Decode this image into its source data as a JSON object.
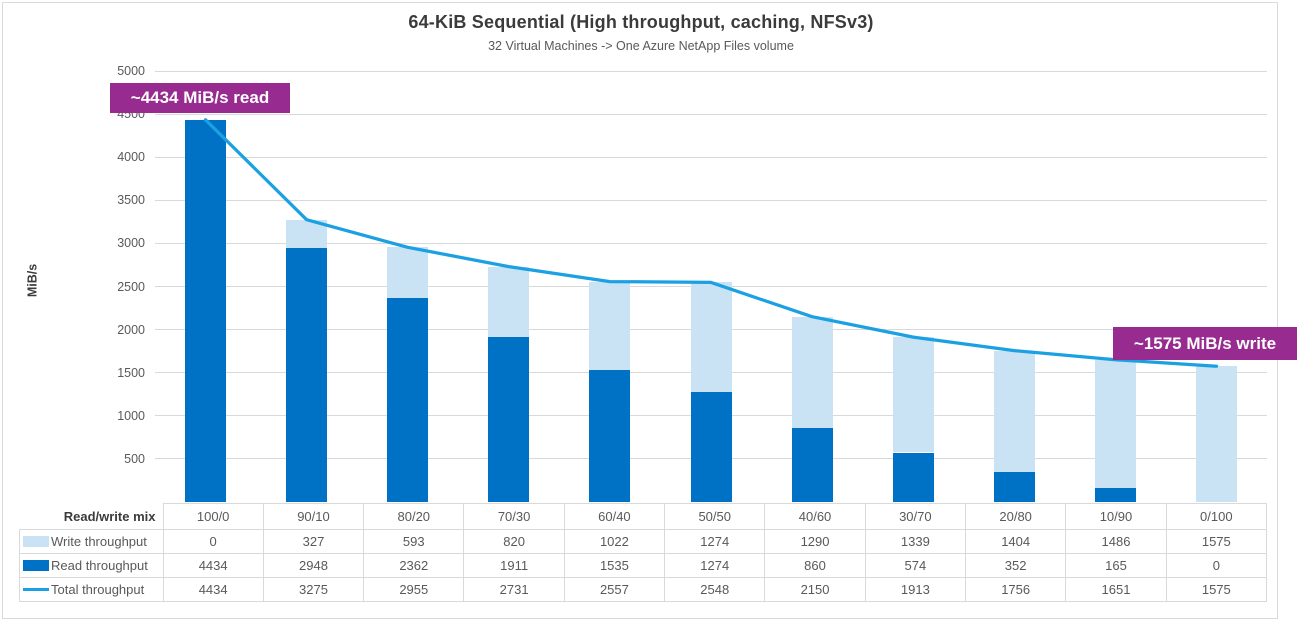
{
  "header": {
    "title": "64-KiB Sequential (High throughput, caching, NFSv3)",
    "subtitle": "32 Virtual Machines -> One Azure NetApp Files volume"
  },
  "annotations": [
    {
      "text": "~4434 MiB/s read",
      "color": "#982B90"
    },
    {
      "text": "~1575 MiB/s write",
      "color": "#982B90"
    }
  ],
  "chart_data": {
    "type": "combo-stacked-bar-line",
    "title": "64-KiB Sequential (High throughput, caching, NFSv3)",
    "subtitle": "32 Virtual Machines -> One Azure NetApp Files volume",
    "xlabel": "",
    "ylabel": "MiB/s",
    "x_header": "Read/write mix",
    "categories": [
      "100/0",
      "90/10",
      "80/20",
      "70/30",
      "60/40",
      "50/50",
      "40/60",
      "30/70",
      "20/80",
      "10/90",
      "0/100"
    ],
    "series": [
      {
        "name": "Write throughput",
        "type": "bar",
        "color": "#C9E2F4",
        "values": [
          0,
          327,
          593,
          820,
          1022,
          1274,
          1290,
          1339,
          1404,
          1486,
          1575
        ]
      },
      {
        "name": "Read throughput",
        "type": "bar",
        "color": "#0072C6",
        "values": [
          4434,
          2948,
          2362,
          1911,
          1535,
          1274,
          860,
          574,
          352,
          165,
          0
        ]
      },
      {
        "name": "Total throughput",
        "type": "line",
        "color": "#1BA1E2",
        "values": [
          4434,
          3275,
          2955,
          2731,
          2557,
          2548,
          2150,
          1913,
          1756,
          1651,
          1575
        ]
      }
    ],
    "ylim": [
      0,
      5000
    ],
    "yticks": [
      500,
      1000,
      1500,
      2000,
      2500,
      3000,
      3500,
      4000,
      4500,
      5000
    ],
    "grid": true,
    "legend_position": "table-left",
    "gridline_color": "#D9D9D9",
    "stack_note": "bars stacked read (bottom) + write (top); line = total drawn through stack tops"
  }
}
